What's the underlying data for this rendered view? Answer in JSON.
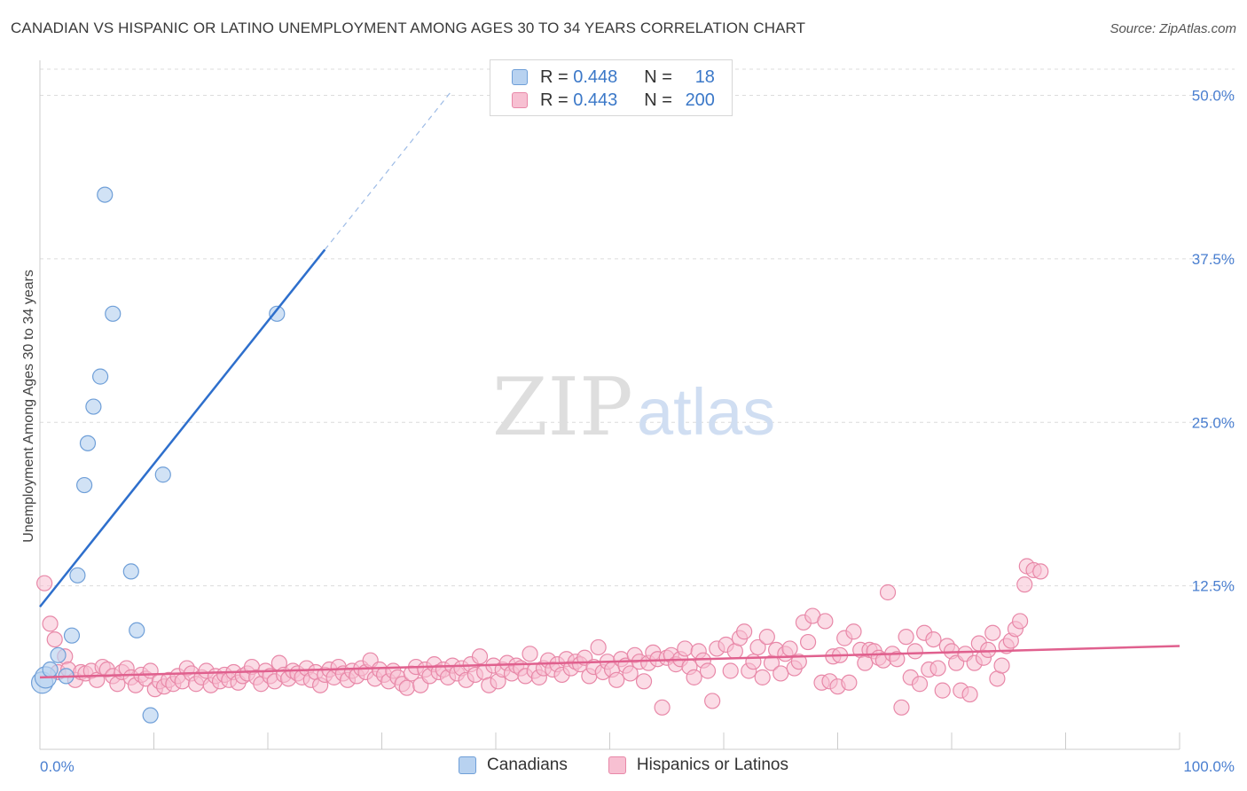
{
  "title": "CANADIAN VS HISPANIC OR LATINO UNEMPLOYMENT AMONG AGES 30 TO 34 YEARS CORRELATION CHART",
  "source": "Source: ZipAtlas.com",
  "watermark": {
    "zip": "ZIP",
    "atlas": "atlas"
  },
  "legend": {
    "rows": [
      {
        "r_label": "R =",
        "r_value": "0.448",
        "n_label": "N =",
        "n_value": "18"
      },
      {
        "r_label": "R =",
        "r_value": "0.443",
        "n_label": "N =",
        "n_value": "200"
      }
    ]
  },
  "colors": {
    "canadians_fill": "#b8d2f0",
    "canadians_stroke": "#6f9fd8",
    "canadians_line": "#2e6fcc",
    "hispanics_fill": "#f7c0d2",
    "hispanics_stroke": "#e888a8",
    "hispanics_line": "#e0608e",
    "tick": "#4a7fd0",
    "grid": "#dcdcdc"
  },
  "chart_data": {
    "type": "scatter",
    "xlabel": "",
    "ylabel": "Unemployment Among Ages 30 to 34 years",
    "xlim": [
      0,
      100
    ],
    "ylim": [
      0,
      52
    ],
    "x_tick_labels": [
      "0.0%",
      "100.0%"
    ],
    "y_ticks": [
      12.5,
      25.0,
      37.5,
      50.0
    ],
    "y_tick_labels": [
      "12.5%",
      "25.0%",
      "37.5%",
      "50.0%"
    ],
    "grid": true,
    "legend_position": "bottom",
    "series": [
      {
        "name": "Canadians",
        "points": [
          [
            0.2,
            5.1
          ],
          [
            0.5,
            5.5
          ],
          [
            0.9,
            6.1
          ],
          [
            1.6,
            7.2
          ],
          [
            2.3,
            5.6
          ],
          [
            2.8,
            8.7
          ],
          [
            3.3,
            13.3
          ],
          [
            3.9,
            20.2
          ],
          [
            4.2,
            23.4
          ],
          [
            4.7,
            26.2
          ],
          [
            5.3,
            28.5
          ],
          [
            5.7,
            42.4
          ],
          [
            6.4,
            33.3
          ],
          [
            8.0,
            13.6
          ],
          [
            8.5,
            9.1
          ],
          [
            9.7,
            2.6
          ],
          [
            10.8,
            21.0
          ],
          [
            20.8,
            33.3
          ]
        ],
        "trend": {
          "x": [
            0,
            25
          ],
          "y": [
            10.9,
            38.2
          ],
          "dashed_to": [
            36,
            50.2
          ]
        }
      },
      {
        "name": "Hispanics or Latinos",
        "points": [
          [
            0.4,
            12.7
          ],
          [
            0.9,
            9.6
          ],
          [
            1.3,
            8.4
          ],
          [
            1.6,
            5.9
          ],
          [
            2.2,
            7.1
          ],
          [
            2.5,
            6.1
          ],
          [
            3.1,
            5.3
          ],
          [
            3.6,
            5.9
          ],
          [
            4.0,
            5.8
          ],
          [
            4.5,
            6.0
          ],
          [
            5.0,
            5.3
          ],
          [
            5.5,
            6.3
          ],
          [
            5.9,
            6.1
          ],
          [
            6.4,
            5.6
          ],
          [
            6.8,
            5.0
          ],
          [
            7.2,
            5.9
          ],
          [
            7.6,
            6.2
          ],
          [
            8.0,
            5.5
          ],
          [
            8.4,
            4.9
          ],
          [
            8.9,
            5.7
          ],
          [
            9.3,
            5.4
          ],
          [
            9.7,
            6.0
          ],
          [
            10.1,
            4.6
          ],
          [
            10.5,
            5.2
          ],
          [
            10.9,
            4.8
          ],
          [
            11.3,
            5.3
          ],
          [
            11.7,
            5.0
          ],
          [
            12.1,
            5.6
          ],
          [
            12.5,
            5.2
          ],
          [
            12.9,
            6.2
          ],
          [
            13.3,
            5.8
          ],
          [
            13.7,
            5.0
          ],
          [
            14.2,
            5.5
          ],
          [
            14.6,
            6.0
          ],
          [
            15.0,
            4.9
          ],
          [
            15.4,
            5.6
          ],
          [
            15.8,
            5.2
          ],
          [
            16.2,
            5.7
          ],
          [
            16.6,
            5.3
          ],
          [
            17.0,
            5.9
          ],
          [
            17.4,
            5.1
          ],
          [
            17.8,
            5.6
          ],
          [
            18.2,
            5.8
          ],
          [
            18.6,
            6.3
          ],
          [
            19.0,
            5.5
          ],
          [
            19.4,
            5.0
          ],
          [
            19.8,
            6.0
          ],
          [
            20.2,
            5.6
          ],
          [
            20.6,
            5.2
          ],
          [
            21.0,
            6.6
          ],
          [
            21.4,
            5.7
          ],
          [
            21.8,
            5.4
          ],
          [
            22.2,
            6.0
          ],
          [
            22.6,
            5.8
          ],
          [
            23.0,
            5.5
          ],
          [
            23.4,
            6.2
          ],
          [
            23.8,
            5.3
          ],
          [
            24.2,
            5.9
          ],
          [
            24.6,
            4.9
          ],
          [
            25.0,
            5.7
          ],
          [
            25.4,
            6.1
          ],
          [
            25.8,
            5.5
          ],
          [
            26.2,
            6.3
          ],
          [
            26.6,
            5.8
          ],
          [
            27.0,
            5.3
          ],
          [
            27.4,
            6.0
          ],
          [
            27.8,
            5.6
          ],
          [
            28.2,
            6.2
          ],
          [
            28.6,
            5.9
          ],
          [
            29.0,
            6.8
          ],
          [
            29.4,
            5.4
          ],
          [
            29.8,
            6.1
          ],
          [
            30.2,
            5.7
          ],
          [
            30.6,
            5.2
          ],
          [
            31.0,
            6.0
          ],
          [
            31.4,
            5.5
          ],
          [
            31.8,
            5.0
          ],
          [
            32.2,
            4.7
          ],
          [
            32.6,
            5.8
          ],
          [
            33.0,
            6.3
          ],
          [
            33.4,
            4.9
          ],
          [
            33.8,
            6.1
          ],
          [
            34.2,
            5.6
          ],
          [
            34.6,
            6.5
          ],
          [
            35.0,
            5.9
          ],
          [
            35.4,
            6.1
          ],
          [
            35.8,
            5.5
          ],
          [
            36.2,
            6.4
          ],
          [
            36.6,
            5.8
          ],
          [
            37.0,
            6.2
          ],
          [
            37.4,
            5.3
          ],
          [
            37.8,
            6.5
          ],
          [
            38.2,
            5.7
          ],
          [
            38.6,
            7.1
          ],
          [
            39.0,
            5.9
          ],
          [
            39.4,
            4.9
          ],
          [
            39.8,
            6.4
          ],
          [
            40.2,
            5.2
          ],
          [
            40.6,
            6.1
          ],
          [
            41.0,
            6.6
          ],
          [
            41.4,
            5.8
          ],
          [
            41.8,
            6.4
          ],
          [
            42.2,
            6.2
          ],
          [
            42.6,
            5.6
          ],
          [
            43.0,
            7.3
          ],
          [
            43.4,
            6.0
          ],
          [
            43.8,
            5.5
          ],
          [
            44.2,
            6.2
          ],
          [
            44.6,
            6.8
          ],
          [
            45.0,
            6.1
          ],
          [
            45.4,
            6.5
          ],
          [
            45.8,
            5.7
          ],
          [
            46.2,
            6.9
          ],
          [
            46.6,
            6.2
          ],
          [
            47.0,
            6.7
          ],
          [
            47.4,
            6.5
          ],
          [
            47.8,
            7.0
          ],
          [
            48.2,
            5.6
          ],
          [
            48.6,
            6.3
          ],
          [
            49.0,
            7.8
          ],
          [
            49.4,
            5.9
          ],
          [
            49.8,
            6.7
          ],
          [
            50.2,
            6.1
          ],
          [
            50.6,
            5.3
          ],
          [
            51.0,
            6.9
          ],
          [
            51.4,
            6.4
          ],
          [
            51.8,
            5.8
          ],
          [
            52.2,
            7.2
          ],
          [
            52.6,
            6.7
          ],
          [
            53.0,
            5.2
          ],
          [
            53.4,
            6.6
          ],
          [
            53.8,
            7.4
          ],
          [
            54.2,
            6.9
          ],
          [
            54.6,
            3.2
          ],
          [
            55.0,
            7.0
          ],
          [
            55.4,
            7.2
          ],
          [
            55.8,
            6.5
          ],
          [
            56.2,
            6.9
          ],
          [
            56.6,
            7.7
          ],
          [
            57.0,
            6.3
          ],
          [
            57.4,
            5.5
          ],
          [
            57.8,
            7.5
          ],
          [
            58.2,
            6.8
          ],
          [
            58.6,
            6.0
          ],
          [
            59.0,
            3.7
          ],
          [
            59.4,
            7.7
          ],
          [
            60.2,
            8.0
          ],
          [
            60.6,
            6.0
          ],
          [
            61.0,
            7.5
          ],
          [
            61.4,
            8.5
          ],
          [
            61.8,
            9.0
          ],
          [
            62.2,
            6.0
          ],
          [
            62.6,
            6.7
          ],
          [
            63.0,
            7.8
          ],
          [
            63.4,
            5.5
          ],
          [
            63.8,
            8.6
          ],
          [
            64.2,
            6.6
          ],
          [
            64.6,
            7.6
          ],
          [
            65.0,
            5.8
          ],
          [
            65.4,
            7.3
          ],
          [
            65.8,
            7.7
          ],
          [
            66.2,
            6.2
          ],
          [
            66.6,
            6.7
          ],
          [
            67.0,
            9.7
          ],
          [
            67.4,
            8.2
          ],
          [
            67.8,
            10.2
          ],
          [
            68.6,
            5.1
          ],
          [
            68.9,
            9.8
          ],
          [
            69.3,
            5.2
          ],
          [
            69.6,
            7.1
          ],
          [
            70.0,
            4.8
          ],
          [
            70.2,
            7.2
          ],
          [
            70.6,
            8.5
          ],
          [
            71.0,
            5.1
          ],
          [
            71.4,
            9.0
          ],
          [
            72.0,
            7.6
          ],
          [
            72.4,
            6.6
          ],
          [
            72.8,
            7.6
          ],
          [
            73.2,
            7.5
          ],
          [
            73.6,
            7.0
          ],
          [
            74.0,
            6.8
          ],
          [
            74.4,
            12.0
          ],
          [
            74.8,
            7.3
          ],
          [
            75.2,
            6.9
          ],
          [
            75.6,
            3.2
          ],
          [
            76.0,
            8.6
          ],
          [
            76.4,
            5.5
          ],
          [
            76.8,
            7.5
          ],
          [
            77.2,
            5.0
          ],
          [
            77.6,
            8.9
          ],
          [
            78.0,
            6.1
          ],
          [
            78.4,
            8.4
          ],
          [
            78.8,
            6.2
          ],
          [
            79.2,
            4.5
          ],
          [
            79.6,
            7.9
          ],
          [
            80.0,
            7.5
          ],
          [
            80.4,
            6.6
          ],
          [
            80.8,
            4.5
          ],
          [
            81.2,
            7.3
          ],
          [
            81.6,
            4.2
          ],
          [
            82.0,
            6.6
          ],
          [
            82.4,
            8.1
          ],
          [
            82.8,
            7.0
          ],
          [
            83.2,
            7.6
          ],
          [
            83.6,
            8.9
          ],
          [
            84.0,
            5.4
          ],
          [
            84.4,
            6.4
          ],
          [
            84.8,
            7.9
          ],
          [
            85.2,
            8.3
          ],
          [
            85.6,
            9.2
          ],
          [
            86.0,
            9.8
          ],
          [
            86.4,
            12.6
          ],
          [
            86.6,
            14.0
          ],
          [
            87.2,
            13.7
          ],
          [
            87.8,
            13.6
          ]
        ],
        "trend": {
          "x": [
            0,
            100
          ],
          "y": [
            5.5,
            7.9
          ]
        }
      }
    ]
  },
  "bottom_legend": {
    "items": [
      "Canadians",
      "Hispanics or Latinos"
    ]
  }
}
